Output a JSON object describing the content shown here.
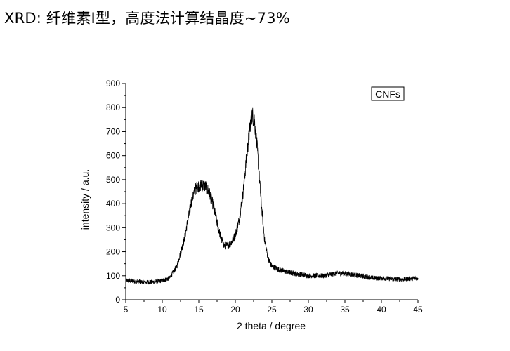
{
  "heading": "XRD: 纤维素I型，高度法计算结晶度~73%",
  "chart_data": {
    "type": "line",
    "xlabel": "2 theta / degree",
    "ylabel": "intensity / a.u.",
    "xlim": [
      5,
      45
    ],
    "ylim": [
      0,
      900
    ],
    "x_ticks": [
      5,
      10,
      15,
      20,
      25,
      30,
      35,
      40,
      45
    ],
    "y_ticks": [
      0,
      100,
      200,
      300,
      400,
      500,
      600,
      700,
      800,
      900
    ],
    "grid": false,
    "legend_position": "top-right",
    "series": [
      {
        "name": "CNFs",
        "color": "#000000",
        "x": [
          5,
          6,
          7,
          8,
          9,
          10,
          11,
          12,
          13,
          13.5,
          14,
          14.5,
          15,
          15.5,
          16,
          16.5,
          17,
          17.5,
          18,
          18.5,
          19,
          19.5,
          20,
          20.5,
          21,
          21.5,
          22,
          22.3,
          22.6,
          23,
          23.5,
          24,
          24.5,
          25,
          26,
          27,
          28,
          29,
          30,
          31,
          32,
          33,
          34,
          35,
          36,
          37,
          38,
          39,
          40,
          41,
          42,
          43,
          44,
          45
        ],
        "values": [
          80,
          78,
          75,
          73,
          75,
          80,
          90,
          140,
          250,
          330,
          410,
          460,
          475,
          478,
          470,
          440,
          390,
          320,
          260,
          225,
          225,
          240,
          270,
          330,
          430,
          580,
          720,
          770,
          750,
          630,
          420,
          250,
          170,
          140,
          125,
          115,
          110,
          105,
          100,
          100,
          100,
          105,
          110,
          110,
          105,
          100,
          95,
          90,
          90,
          88,
          85,
          85,
          88,
          90
        ]
      }
    ]
  }
}
